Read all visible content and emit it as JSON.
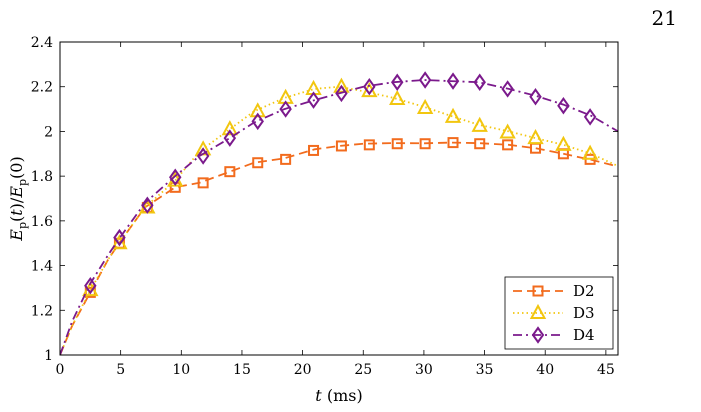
{
  "page": {
    "number": "21"
  },
  "chart_data": {
    "type": "line",
    "title": "",
    "xlabel_var": "t",
    "xlabel_unit": " (ms)",
    "ylabel": "E_p(t)/E_p(0)",
    "xlim": [
      0,
      46
    ],
    "ylim": [
      1,
      2.4
    ],
    "xticks": [
      0,
      5,
      10,
      15,
      20,
      25,
      30,
      35,
      40,
      45
    ],
    "yticks": [
      1,
      1.2,
      1.4,
      1.6,
      1.8,
      2,
      2.2,
      2.4
    ],
    "ytick_labels": [
      "1",
      "1.2",
      "1.4",
      "1.6",
      "1.8",
      "2",
      "2.2",
      "2.4"
    ],
    "grid": false,
    "legend_position": "bottom-right",
    "series": [
      {
        "name": "D2",
        "color": "#f26b1d",
        "marker": "square",
        "line_style": "dashed",
        "x": [
          0,
          1,
          2.5,
          4,
          5,
          7,
          9.5,
          11.5,
          14,
          16,
          18.5,
          21,
          23,
          25,
          27.5,
          30,
          32.2,
          34.5,
          37,
          39.2,
          41.5,
          43.8,
          46
        ],
        "y": [
          1.0,
          1.13,
          1.28,
          1.43,
          1.51,
          1.66,
          1.75,
          1.77,
          1.82,
          1.86,
          1.88,
          1.92,
          1.935,
          1.945,
          1.948,
          1.947,
          1.95,
          1.948,
          1.94,
          1.925,
          1.9,
          1.873,
          1.843
        ],
        "markers_x": [
          2.5,
          4.9,
          7.2,
          9.5,
          11.8,
          14.0,
          16.3,
          18.6,
          20.9,
          23.2,
          25.5,
          27.8,
          30.1,
          32.4,
          34.6,
          36.9,
          39.2,
          41.5,
          43.7
        ],
        "markers_y": [
          1.28,
          1.5,
          1.66,
          1.75,
          1.77,
          1.82,
          1.86,
          1.875,
          1.915,
          1.935,
          1.94,
          1.945,
          1.945,
          1.95,
          1.945,
          1.94,
          1.925,
          1.9,
          1.875
        ]
      },
      {
        "name": "D3",
        "color": "#f2c60f",
        "marker": "triangle",
        "line_style": "dotted",
        "x": [
          0,
          1,
          2.5,
          4,
          5,
          7,
          9.5,
          11.5,
          14,
          16,
          18.5,
          21,
          23,
          25,
          27.5,
          30,
          32.2,
          34.5,
          37,
          39.2,
          41.5,
          43.8,
          46
        ],
        "y": [
          1.0,
          1.13,
          1.29,
          1.43,
          1.51,
          1.66,
          1.78,
          1.91,
          2.01,
          2.09,
          2.15,
          2.19,
          2.2,
          2.18,
          2.15,
          2.11,
          2.07,
          2.03,
          2.0,
          1.97,
          1.94,
          1.9,
          1.845
        ],
        "markers_x": [
          2.5,
          4.9,
          7.2,
          9.5,
          11.8,
          14.0,
          16.3,
          18.6,
          20.9,
          23.2,
          25.5,
          27.8,
          30.1,
          32.4,
          34.6,
          36.9,
          39.2,
          41.5,
          43.7
        ],
        "markers_y": [
          1.29,
          1.5,
          1.66,
          1.78,
          1.92,
          2.01,
          2.09,
          2.15,
          2.19,
          2.2,
          2.18,
          2.145,
          2.105,
          2.065,
          2.025,
          1.995,
          1.97,
          1.94,
          1.9
        ]
      },
      {
        "name": "D4",
        "color": "#7b1a8c",
        "marker": "diamond",
        "line_style": "dashdot",
        "x": [
          0,
          1,
          2.5,
          4,
          5,
          7,
          9.5,
          11.5,
          14,
          16,
          18.5,
          21,
          23,
          25,
          27.5,
          30,
          32.2,
          34.5,
          37,
          39.2,
          41.5,
          43.8,
          46
        ],
        "y": [
          1.0,
          1.15,
          1.32,
          1.45,
          1.53,
          1.68,
          1.8,
          1.89,
          1.97,
          2.04,
          2.1,
          2.14,
          2.17,
          2.2,
          2.22,
          2.23,
          2.225,
          2.22,
          2.19,
          2.16,
          2.12,
          2.07,
          2.0
        ],
        "markers_x": [
          2.5,
          4.9,
          7.2,
          9.5,
          11.8,
          14.0,
          16.3,
          18.6,
          20.9,
          23.2,
          25.5,
          27.8,
          30.1,
          32.4,
          34.6,
          36.9,
          39.2,
          41.5,
          43.7
        ],
        "markers_y": [
          1.31,
          1.525,
          1.67,
          1.795,
          1.89,
          1.97,
          2.045,
          2.1,
          2.14,
          2.17,
          2.2,
          2.22,
          2.23,
          2.225,
          2.22,
          2.19,
          2.155,
          2.115,
          2.065
        ]
      }
    ]
  }
}
